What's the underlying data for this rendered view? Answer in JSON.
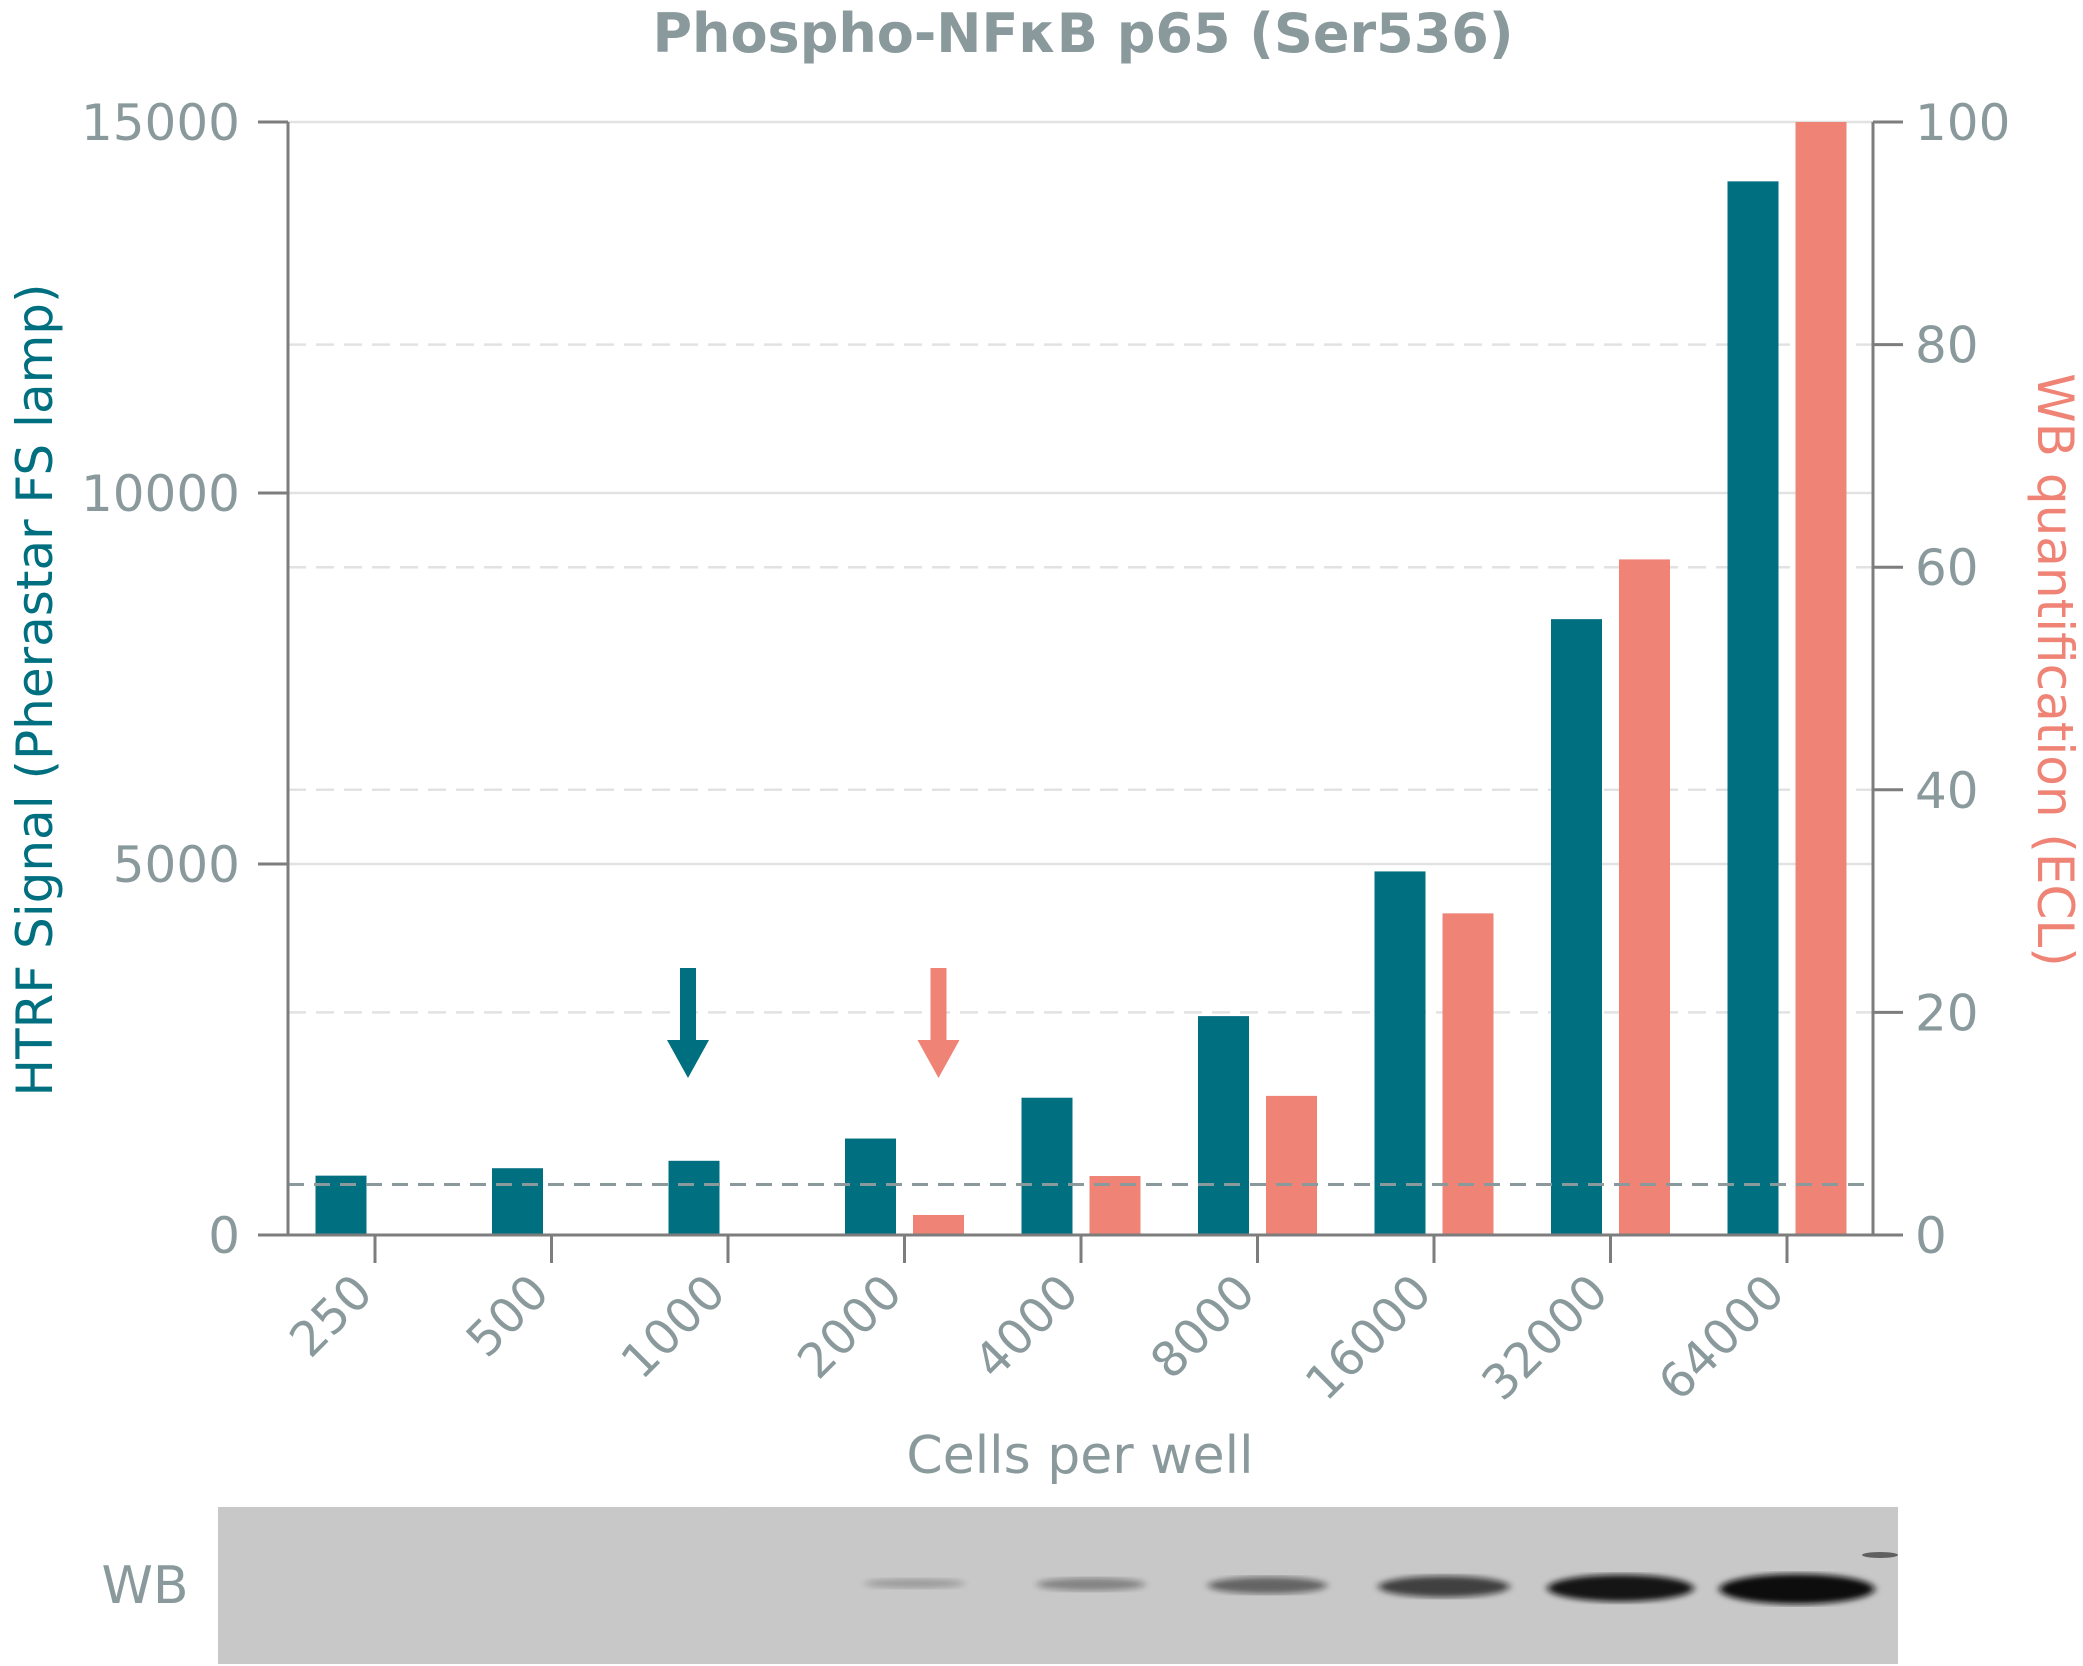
{
  "chart_data": {
    "type": "bar",
    "title": "Phospho-NFκB p65 (Ser536)",
    "xlabel": "Cells per well",
    "ylabel_left": "HTRF Signal (Pherastar FS lamp)",
    "ylabel_right": "WB quantification (ECL)",
    "categories": [
      "250",
      "500",
      "1000",
      "2000",
      "4000",
      "8000",
      "16000",
      "32000",
      "64000"
    ],
    "y_left": {
      "ylim": [
        0,
        15000
      ],
      "ticks": [
        "0",
        "5000",
        "10000",
        "15000"
      ]
    },
    "y_right": {
      "ylim": [
        0,
        100
      ],
      "ticks": [
        "0",
        "20",
        "40",
        "60",
        "80",
        "100"
      ]
    },
    "series": [
      {
        "axis": "left",
        "color": "#006f80",
        "values": [
          800,
          900,
          1000,
          1300,
          1850,
          2950,
          4900,
          8300,
          14200
        ]
      },
      {
        "axis": "right",
        "color": "#ef8476",
        "values": [
          null,
          null,
          null,
          1.8,
          5.3,
          12.5,
          28.9,
          60.7,
          100
        ]
      }
    ],
    "reference_line": {
      "axis": "left",
      "value": 680,
      "style": "dashed"
    },
    "markers": [
      {
        "type": "arrow-down",
        "category": "1000",
        "color": "#006f80"
      },
      {
        "type": "arrow-down",
        "category": "2000",
        "color": "#ef8476"
      }
    ],
    "grid": true,
    "colors": {
      "teal": "#006f80",
      "salmon": "#ef8476",
      "axis_text": "#8a9a9c",
      "grid": "#e2e2e2"
    }
  },
  "wb_strip": {
    "label": "WB",
    "band_intensity": [
      0,
      0,
      0,
      0.08,
      0.22,
      0.4,
      0.6,
      0.85,
      1.0
    ]
  }
}
